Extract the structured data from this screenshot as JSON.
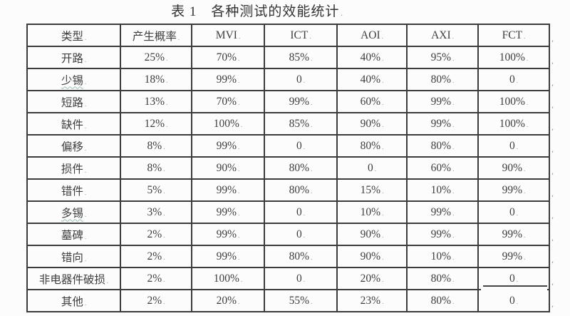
{
  "caption": "表 1　各种测试的效能统计",
  "table": {
    "headers": [
      "类型",
      "产生概率",
      "MVI",
      "ICT",
      "AOI",
      "AXI",
      "FCT"
    ],
    "rows": [
      {
        "type": "开路",
        "spellcheck_underline": false,
        "values": [
          "25%",
          "70%",
          "85%",
          "40%",
          "95%",
          "100%"
        ]
      },
      {
        "type": "少锡",
        "spellcheck_underline": true,
        "values": [
          "18%",
          "99%",
          "0",
          "40%",
          "80%",
          "0"
        ]
      },
      {
        "type": "短路",
        "spellcheck_underline": false,
        "values": [
          "13%",
          "70%",
          "99%",
          "60%",
          "99%",
          "100%"
        ]
      },
      {
        "type": "缺件",
        "spellcheck_underline": false,
        "values": [
          "12%",
          "100%",
          "85%",
          "90%",
          "99%",
          "100%"
        ]
      },
      {
        "type": "偏移",
        "spellcheck_underline": false,
        "values": [
          "8%",
          "99%",
          "0",
          "80%",
          "80%",
          "0"
        ]
      },
      {
        "type": "损件",
        "spellcheck_underline": false,
        "values": [
          "8%",
          "90%",
          "80%",
          "0",
          "60%",
          "90%"
        ]
      },
      {
        "type": "错件",
        "spellcheck_underline": false,
        "values": [
          "5%",
          "99%",
          "80%",
          "15%",
          "10%",
          "99%"
        ]
      },
      {
        "type": "多锡",
        "spellcheck_underline": true,
        "values": [
          "3%",
          "99%",
          "0",
          "10%",
          "99%",
          "0"
        ]
      },
      {
        "type": "墓碑",
        "spellcheck_underline": false,
        "values": [
          "2%",
          "99%",
          "0",
          "90%",
          "99%",
          "99%"
        ]
      },
      {
        "type": "错向",
        "spellcheck_underline": false,
        "values": [
          "2%",
          "99%",
          "80%",
          "90%",
          "10%",
          "99%"
        ]
      },
      {
        "type": "非电器件破损",
        "spellcheck_underline": false,
        "values": [
          "2%",
          "100%",
          "0",
          "20%",
          "80%",
          "0"
        ]
      },
      {
        "type": "其他",
        "spellcheck_underline": false,
        "values": [
          "2%",
          "20%",
          "55%",
          "23%",
          "80%",
          "0"
        ]
      }
    ],
    "row_end_mark": ",",
    "row_count_including_header": 13
  },
  "colors": {
    "border": "#3b3b3b",
    "text": "#3e3e3e",
    "spellcheck_underline": "#9fbfb0",
    "background": "#fcfcfc"
  }
}
